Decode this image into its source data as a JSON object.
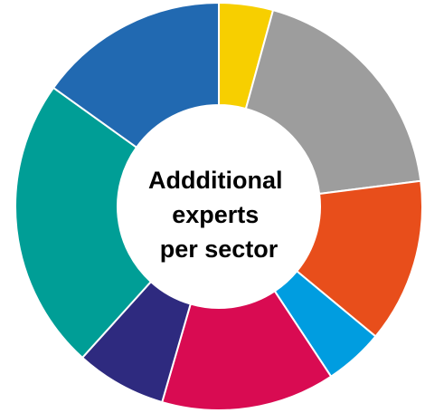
{
  "chart_data": {
    "type": "pie",
    "variant": "donut",
    "title_lines": [
      "Addditional",
      "experts",
      "per sector"
    ],
    "legend": "none",
    "slices": [
      {
        "value": 4.3,
        "color": "#F7CF00"
      },
      {
        "value": 18.7,
        "color": "#9D9D9D"
      },
      {
        "value": 13.0,
        "color": "#E84E1B"
      },
      {
        "value": 4.7,
        "color": "#009DE0"
      },
      {
        "value": 13.8,
        "color": "#D90B52"
      },
      {
        "value": 7.2,
        "color": "#2E2A7F"
      },
      {
        "value": 23.2,
        "color": "#009E96"
      },
      {
        "value": 15.1,
        "color": "#2169B1"
      }
    ]
  }
}
